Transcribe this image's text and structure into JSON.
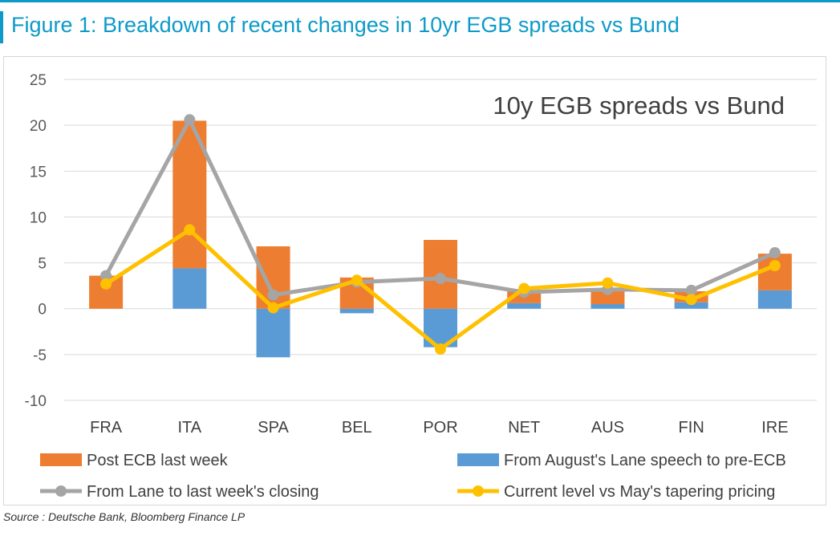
{
  "figure_title": "Figure 1: Breakdown of recent changes in 10yr EGB spreads vs Bund",
  "source": "Source : Deutsche Bank, Bloomberg Finance LP",
  "colors": {
    "accent": "#0d9ac9",
    "post_ecb": "#ed7d31",
    "august_lane": "#5b9bd5",
    "lane_to_close": "#a5a5a5",
    "current_vs_may": "#ffc000"
  },
  "chart_data": {
    "type": "bar",
    "stacked": true,
    "title": "10y EGB spreads vs Bund",
    "xlabel": "",
    "ylabel": "",
    "ylim": [
      -10,
      25
    ],
    "yticks": [
      -10,
      -5,
      0,
      5,
      10,
      15,
      20,
      25
    ],
    "grid": true,
    "legend_position": "bottom",
    "categories": [
      "FRA",
      "ITA",
      "SPA",
      "BEL",
      "POR",
      "NET",
      "AUS",
      "FIN",
      "IRE"
    ],
    "series": [
      {
        "name": "Post ECB last week",
        "type": "bar",
        "values": [
          3.6,
          16.1,
          6.8,
          3.4,
          7.5,
          1.3,
          1.4,
          1.2,
          4.0
        ]
      },
      {
        "name": "From August's Lane speech to pre-ECB",
        "type": "bar",
        "values": [
          0.0,
          4.4,
          -5.3,
          -0.5,
          -4.2,
          0.6,
          0.5,
          0.7,
          2.0
        ]
      },
      {
        "name": "From Lane to last week's closing",
        "type": "line",
        "values": [
          3.6,
          20.6,
          1.5,
          2.9,
          3.3,
          1.8,
          2.1,
          2.0,
          6.1
        ]
      },
      {
        "name": "Current level vs May's tapering pricing",
        "type": "line",
        "values": [
          2.7,
          8.6,
          0.1,
          3.1,
          -4.4,
          2.2,
          2.8,
          1.0,
          4.7
        ]
      }
    ]
  }
}
